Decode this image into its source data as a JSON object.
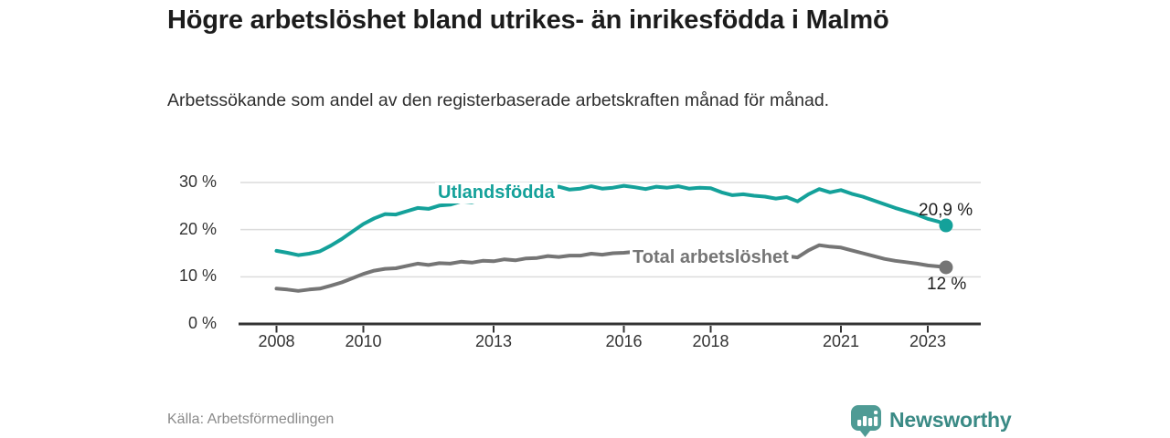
{
  "page": {
    "title": "Högre arbetslöshet bland utrikes- än inrikesfödda i Malmö",
    "subtitle": "Arbetssökande som andel av den registerbaserade arbetskraften månad för månad.",
    "source": "Källa: Arbetsförmedlingen",
    "brand": {
      "name": "Newsworthy",
      "icon": "newsworthy-chart-bubble-icon",
      "text_color": "#3a8a85",
      "icon_color": "#4f9b95"
    }
  },
  "chart_data": {
    "type": "line",
    "title": "Högre arbetslöshet bland utrikes- än inrikesfödda i Malmö",
    "subtitle": "Arbetssökande som andel av den registerbaserade arbetskraften månad för månad.",
    "unit": "%",
    "grid": true,
    "legend_position": "inline-labels",
    "colors": {
      "gridline": "#dcdcdc",
      "axis": "#333333",
      "axis_text": "#333333"
    },
    "x_axis": {
      "tick_years": [
        2008,
        2010,
        2013,
        2016,
        2018,
        2021,
        2023
      ],
      "tick_labels": [
        "2008",
        "2010",
        "2013",
        "2016",
        "2018",
        "2021",
        "2023"
      ],
      "range": [
        2007.2,
        2024.2
      ]
    },
    "y_axis": {
      "ticks": [
        0,
        10,
        20,
        30
      ],
      "tick_labels": [
        "0 %",
        "10 %",
        "20 %",
        "30 %"
      ],
      "range": [
        0,
        32
      ]
    },
    "x": [
      2008,
      2008.25,
      2008.5,
      2008.75,
      2009,
      2009.25,
      2009.5,
      2009.75,
      2010,
      2010.25,
      2010.5,
      2010.75,
      2011,
      2011.25,
      2011.5,
      2011.75,
      2012,
      2012.25,
      2012.5,
      2012.75,
      2013,
      2013.25,
      2013.5,
      2013.75,
      2014,
      2014.25,
      2014.5,
      2014.75,
      2015,
      2015.25,
      2015.5,
      2015.75,
      2016,
      2016.25,
      2016.5,
      2016.75,
      2017,
      2017.25,
      2017.5,
      2017.75,
      2018,
      2018.25,
      2018.5,
      2018.75,
      2019,
      2019.25,
      2019.5,
      2019.75,
      2020,
      2020.25,
      2020.5,
      2020.75,
      2021,
      2021.25,
      2021.5,
      2021.75,
      2022,
      2022.25,
      2022.5,
      2022.75,
      2023,
      2023.25,
      2023.42
    ],
    "series": [
      {
        "name": "Utlandsfödda",
        "color": "#14a19a",
        "end_label": "20,9 %",
        "end_value": 20.9,
        "values": [
          15.5,
          15.1,
          14.6,
          14.9,
          15.4,
          16.6,
          18.0,
          19.6,
          21.2,
          22.4,
          23.3,
          23.2,
          23.9,
          24.6,
          24.4,
          25.1,
          25.3,
          26.0,
          25.8,
          26.4,
          27.3,
          27.6,
          27.2,
          27.9,
          28.2,
          28.8,
          29.1,
          28.5,
          28.7,
          29.2,
          28.7,
          28.9,
          29.3,
          29.0,
          28.6,
          29.1,
          28.9,
          29.2,
          28.7,
          28.9,
          28.8,
          27.9,
          27.3,
          27.5,
          27.2,
          27.0,
          26.6,
          26.9,
          26.0,
          27.5,
          28.6,
          27.9,
          28.4,
          27.6,
          27.0,
          26.2,
          25.4,
          24.6,
          23.9,
          23.2,
          22.3,
          21.7,
          20.9
        ]
      },
      {
        "name": "Total arbetslöshet",
        "color": "#757575",
        "end_label": "12 %",
        "end_value": 12.0,
        "values": [
          7.5,
          7.3,
          7.0,
          7.3,
          7.5,
          8.1,
          8.8,
          9.7,
          10.6,
          11.3,
          11.7,
          11.8,
          12.3,
          12.8,
          12.5,
          12.9,
          12.8,
          13.2,
          13.0,
          13.4,
          13.3,
          13.7,
          13.5,
          13.9,
          14.0,
          14.4,
          14.2,
          14.5,
          14.5,
          14.9,
          14.7,
          15.0,
          15.1,
          15.3,
          15.0,
          15.2,
          15.0,
          15.2,
          14.9,
          15.0,
          14.9,
          14.6,
          14.4,
          14.5,
          14.3,
          14.4,
          14.2,
          14.4,
          14.1,
          15.6,
          16.7,
          16.4,
          16.2,
          15.6,
          15.0,
          14.4,
          13.8,
          13.4,
          13.1,
          12.8,
          12.4,
          12.2,
          12.0
        ]
      }
    ]
  }
}
